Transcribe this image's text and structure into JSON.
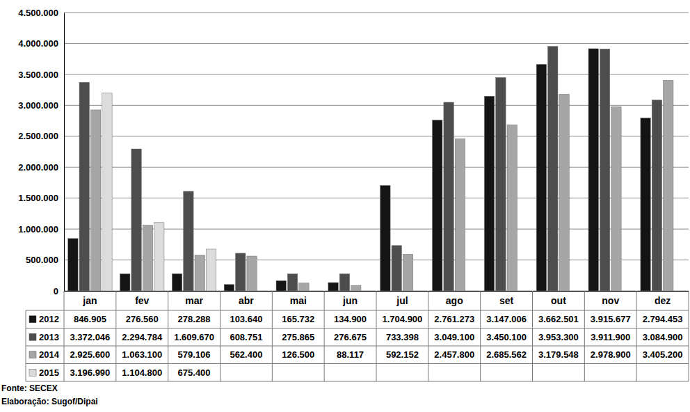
{
  "chart_data": {
    "type": "bar",
    "categories": [
      "jan",
      "fev",
      "mar",
      "abr",
      "mai",
      "jun",
      "jul",
      "ago",
      "set",
      "out",
      "nov",
      "dez"
    ],
    "series": [
      {
        "name": "2012",
        "color": "#141414",
        "values": [
          846905,
          276560,
          278288,
          103640,
          165732,
          134900,
          1704900,
          2761273,
          3147006,
          3662501,
          3915677,
          2794453
        ],
        "value_labels": [
          "846.905",
          "276.560",
          "278.288",
          "103.640",
          "165.732",
          "134.900",
          "1.704.900",
          "2.761.273",
          "3.147.006",
          "3.662.501",
          "3.915.677",
          "2.794.453"
        ]
      },
      {
        "name": "2013",
        "color": "#4d4d4d",
        "values": [
          3372046,
          2294784,
          1609670,
          608751,
          275865,
          276675,
          733398,
          3049100,
          3450100,
          3953300,
          3911900,
          3084900
        ],
        "value_labels": [
          "3.372.046",
          "2.294.784",
          "1.609.670",
          "608.751",
          "275.865",
          "276.675",
          "733.398",
          "3.049.100",
          "3.450.100",
          "3.953.300",
          "3.911.900",
          "3.084.900"
        ]
      },
      {
        "name": "2014",
        "color": "#a6a6a6",
        "values": [
          2925600,
          1063100,
          579106,
          562400,
          126500,
          88117,
          592152,
          2457800,
          2685562,
          3179548,
          2978900,
          3405200
        ],
        "value_labels": [
          "2.925.600",
          "1.063.100",
          "579.106",
          "562.400",
          "126.500",
          "88.117",
          "592.152",
          "2.457.800",
          "2.685.562",
          "3.179.548",
          "2.978.900",
          "3.405.200"
        ]
      },
      {
        "name": "2015",
        "color": "#dcdcdc",
        "values": [
          3196990,
          1104800,
          675400,
          null,
          null,
          null,
          null,
          null,
          null,
          null,
          null,
          null
        ],
        "value_labels": [
          "3.196.990",
          "1.104.800",
          "675.400",
          null,
          null,
          null,
          null,
          null,
          null,
          null,
          null,
          null
        ]
      }
    ],
    "ylim": [
      0,
      4500000
    ],
    "yticks": [
      0,
      {
        "value": 500000,
        "label": "500.000"
      },
      {
        "value": 1000000,
        "label": "1.000.000"
      },
      {
        "value": 1500000,
        "label": "1.500.000"
      },
      {
        "value": 2000000,
        "label": "2.000.000"
      },
      {
        "value": 2500000,
        "label": "2.500.000"
      },
      {
        "value": 3000000,
        "label": "3.000.000"
      },
      {
        "value": 3500000,
        "label": "3.500.000"
      },
      {
        "value": 4000000,
        "label": "4.000.000"
      },
      {
        "value": 4500000,
        "label": "4.500.000"
      }
    ],
    "grid": true,
    "annotations": [
      "Fonte: SECEX",
      "Elaboração: Sugof/Dipai"
    ]
  }
}
